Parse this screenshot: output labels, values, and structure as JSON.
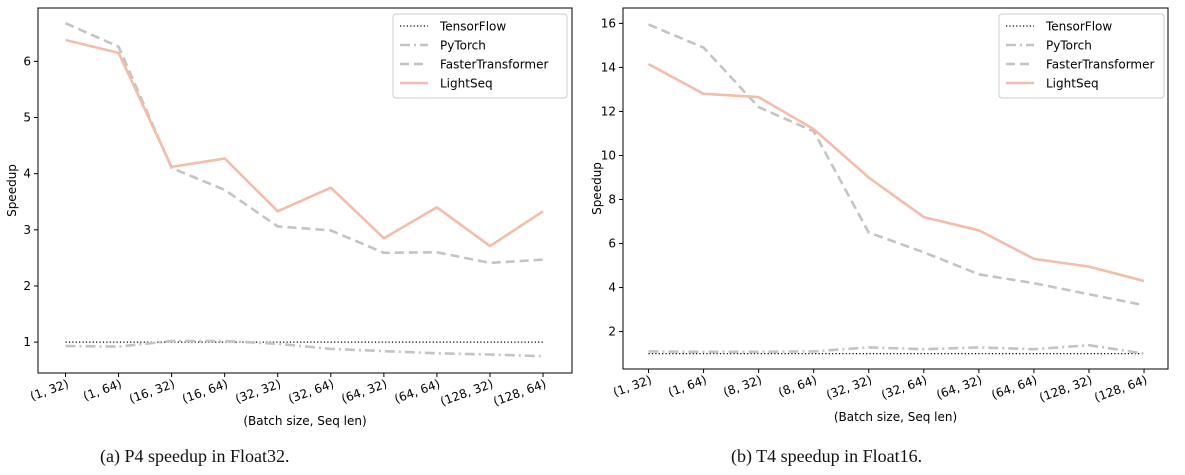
{
  "chart_data": [
    {
      "type": "line",
      "title": "",
      "caption": "(a)  P4 speedup in Float32.",
      "xlabel": "(Batch size, Seq len)",
      "ylabel": "Speedup",
      "categories": [
        "(1, 32)",
        "(1, 64)",
        "(16, 32)",
        "(16, 64)",
        "(32, 32)",
        "(32, 64)",
        "(64, 32)",
        "(64, 64)",
        "(128, 32)",
        "(128, 64)"
      ],
      "ylim": [
        0.45,
        6.95
      ],
      "yticks": [
        1,
        2,
        3,
        4,
        5,
        6
      ],
      "grid": false,
      "legend_position": "top-right",
      "series": [
        {
          "name": "TensorFlow",
          "style": "dotted",
          "color": "#000000",
          "values": [
            1,
            1,
            1,
            1,
            1,
            1,
            1,
            1,
            1,
            1
          ]
        },
        {
          "name": "PyTorch",
          "style": "dashdot",
          "color": "#c4c4c4",
          "values": [
            0.93,
            0.92,
            1.02,
            1.02,
            0.97,
            0.88,
            0.84,
            0.8,
            0.78,
            0.75
          ]
        },
        {
          "name": "FasterTransformer",
          "style": "dashed",
          "color": "#c4c4c4",
          "values": [
            6.68,
            6.26,
            4.1,
            3.71,
            3.06,
            2.99,
            2.59,
            2.6,
            2.41,
            2.47
          ]
        },
        {
          "name": "LightSeq",
          "style": "solid",
          "color": "#f3bda9",
          "values": [
            6.38,
            6.15,
            4.12,
            4.27,
            3.33,
            3.75,
            2.85,
            3.4,
            2.71,
            3.33
          ]
        }
      ]
    },
    {
      "type": "line",
      "title": "",
      "caption": "(b)  T4 speedup in Float16.",
      "xlabel": "(Batch size, Seq len)",
      "ylabel": "Speedup",
      "categories": [
        "(1, 32)",
        "(1, 64)",
        "(8, 32)",
        "(8, 64)",
        "(32, 32)",
        "(32, 64)",
        "(64, 32)",
        "(64, 64)",
        "(128, 32)",
        "(128, 64)"
      ],
      "ylim": [
        0.3,
        16.7
      ],
      "yticks": [
        2,
        4,
        6,
        8,
        10,
        12,
        14,
        16
      ],
      "grid": false,
      "legend_position": "top-right",
      "series": [
        {
          "name": "TensorFlow",
          "style": "dotted",
          "color": "#000000",
          "values": [
            1,
            1,
            1,
            1,
            1,
            1,
            1,
            1,
            1,
            1
          ]
        },
        {
          "name": "PyTorch",
          "style": "dashdot",
          "color": "#c4c4c4",
          "values": [
            1.1,
            1.08,
            1.08,
            1.1,
            1.28,
            1.2,
            1.28,
            1.2,
            1.38,
            1.0
          ]
        },
        {
          "name": "FasterTransformer",
          "style": "dashed",
          "color": "#c4c4c4",
          "values": [
            15.95,
            14.9,
            12.2,
            11.1,
            6.5,
            5.6,
            4.6,
            4.2,
            3.7,
            3.2
          ]
        },
        {
          "name": "LightSeq",
          "style": "solid",
          "color": "#f3bda9",
          "values": [
            14.15,
            12.8,
            12.65,
            11.2,
            9.0,
            7.2,
            6.6,
            5.3,
            4.95,
            4.3
          ]
        }
      ]
    }
  ]
}
